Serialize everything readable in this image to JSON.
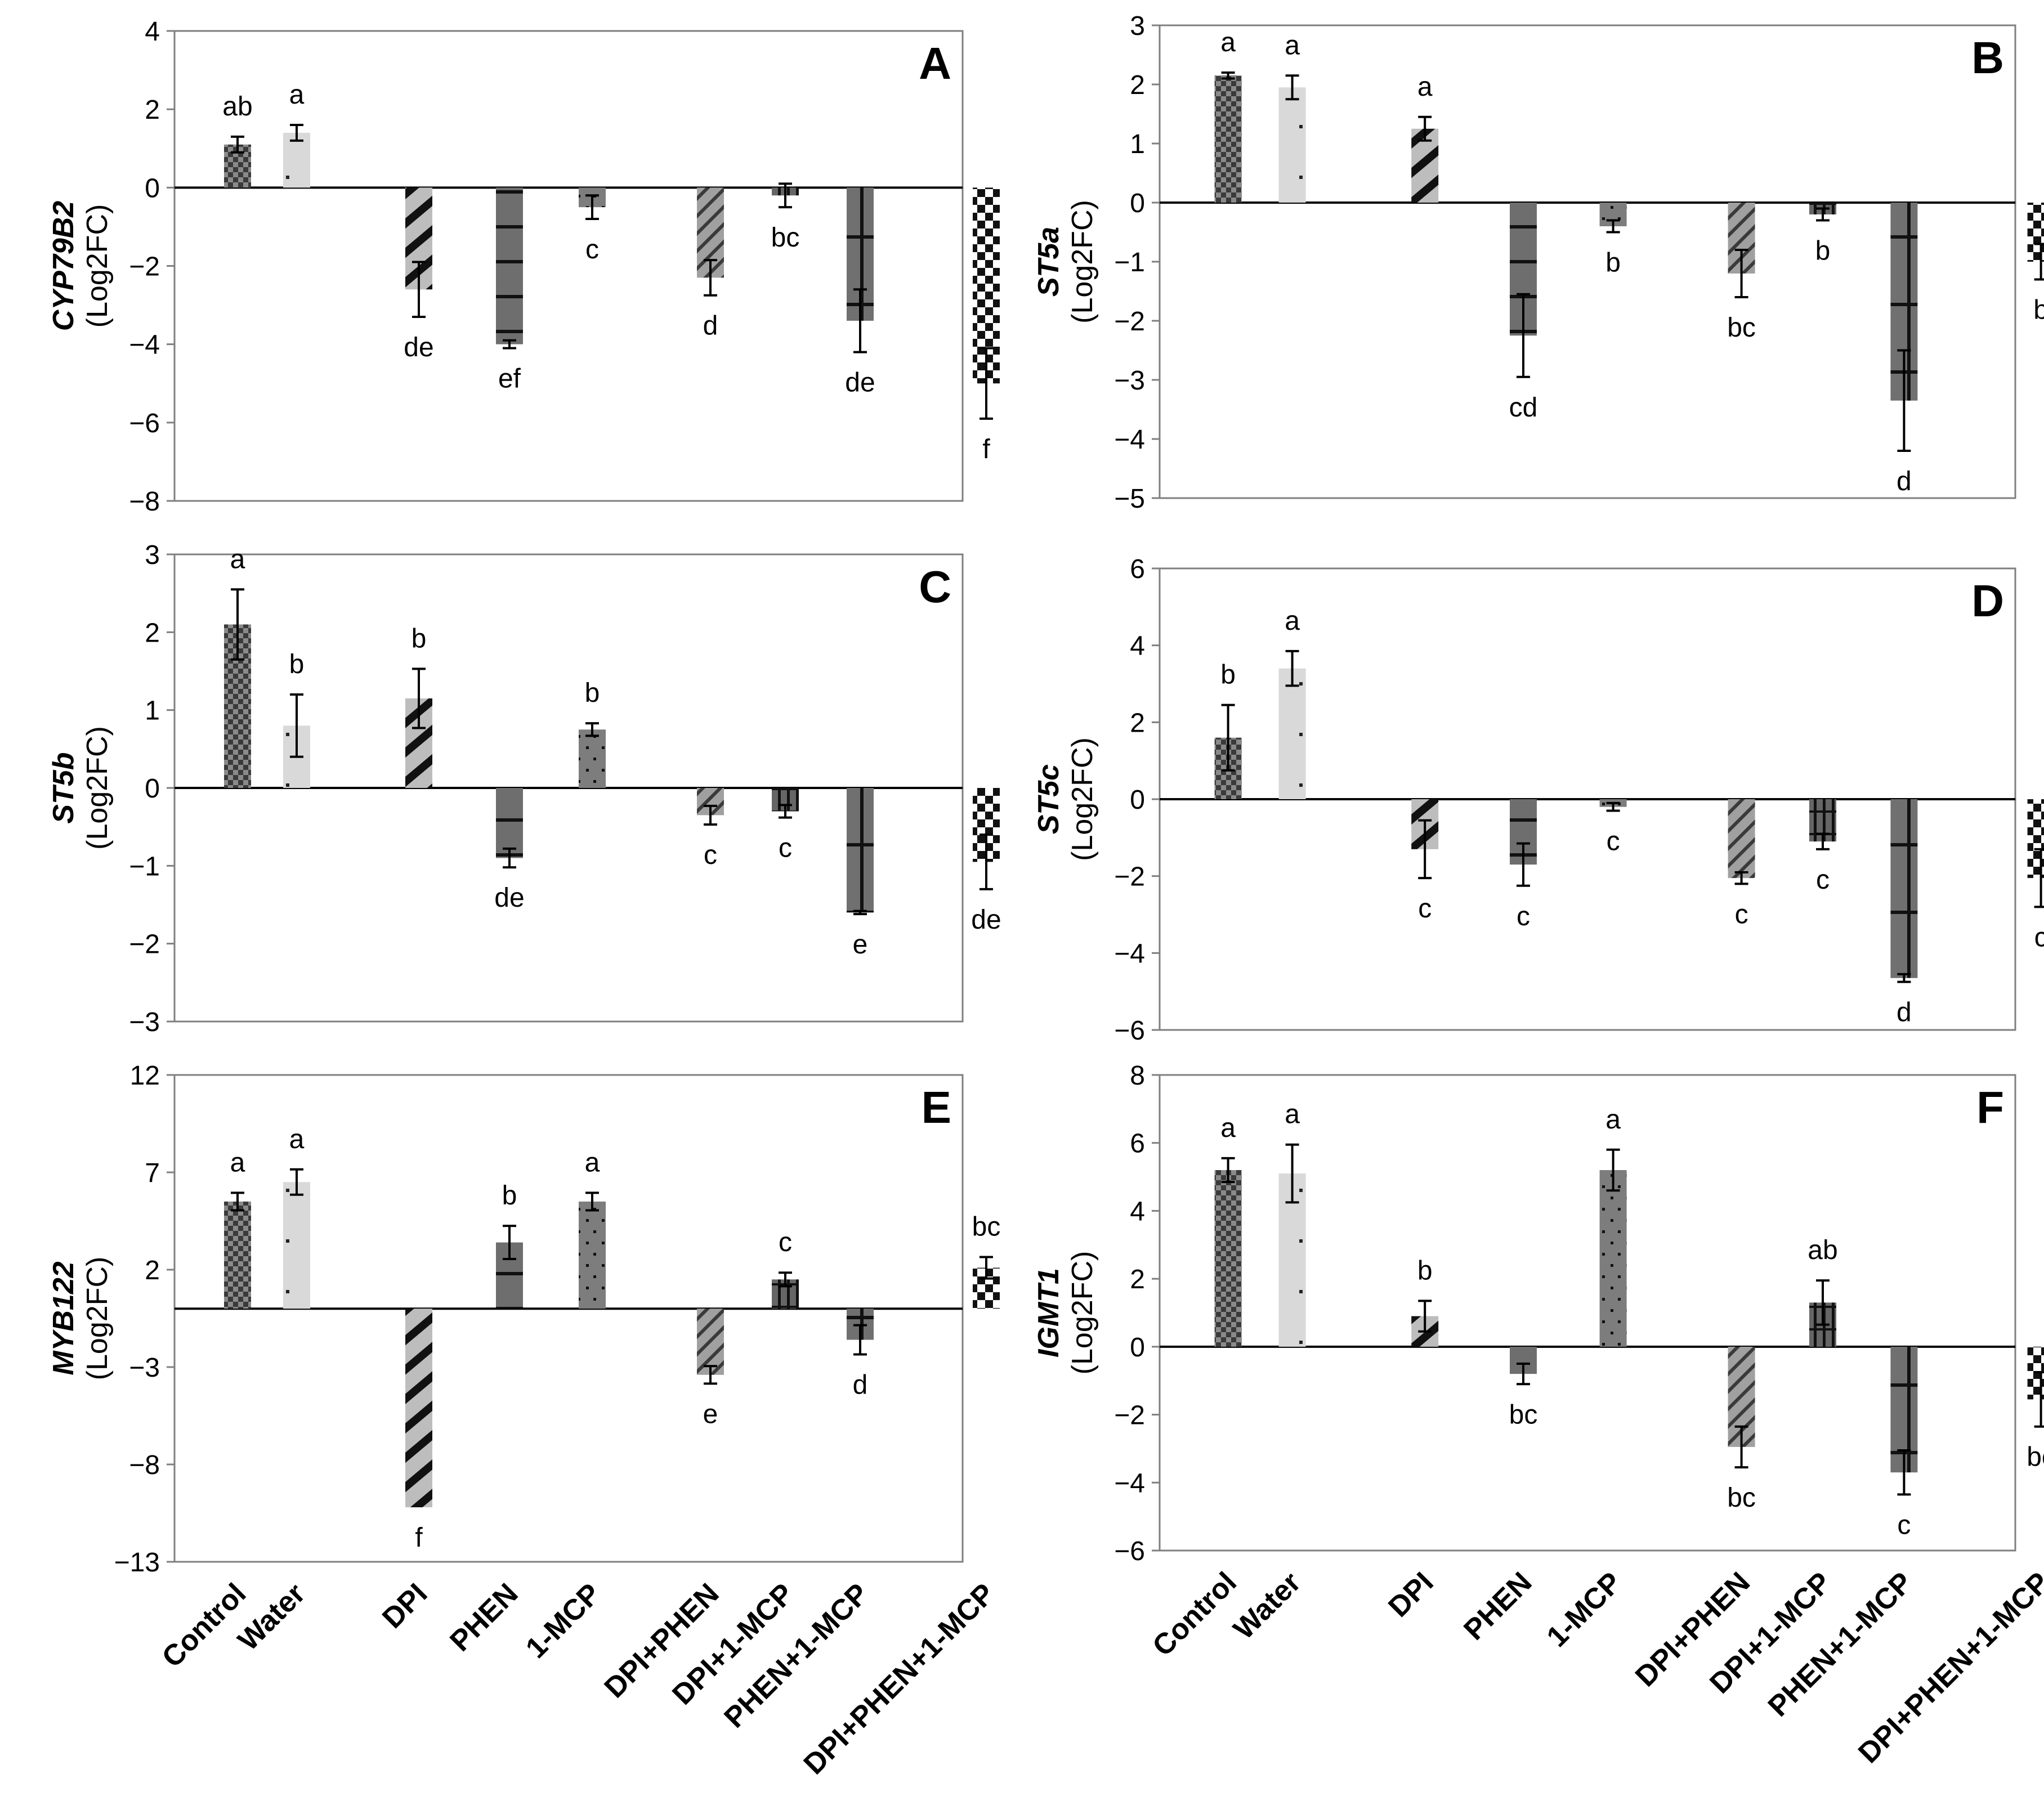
{
  "categories": [
    "Control",
    "Water",
    "DPI",
    "PHEN",
    "1-MCP",
    "DPI+PHEN",
    "DPI+1-MCP",
    "PHEN+1-MCP",
    "DPI+PHEN+1-MCP"
  ],
  "chart_data": [
    {
      "type": "bar",
      "panel": "A",
      "gene": "CYP79B2",
      "ylabel": "(Log2FC)",
      "ylim": [
        -8,
        4
      ],
      "yticks": [
        4,
        2,
        0,
        -2,
        -4,
        -6,
        -8
      ],
      "values": [
        1.1,
        1.4,
        -2.6,
        -4.0,
        -0.5,
        -2.3,
        -0.2,
        -3.4,
        -5.0
      ],
      "errors": [
        0.2,
        0.2,
        0.7,
        0.1,
        0.3,
        0.45,
        0.3,
        0.8,
        0.9
      ],
      "letters": [
        "ab",
        "a",
        "de",
        "ef",
        "c",
        "d",
        "bc",
        "de",
        "f"
      ]
    },
    {
      "type": "bar",
      "panel": "B",
      "gene": "ST5a",
      "ylabel": "(Log2FC)",
      "ylim": [
        -5,
        3
      ],
      "yticks": [
        3,
        2,
        1,
        0,
        -1,
        -2,
        -3,
        -4,
        -5
      ],
      "values": [
        2.15,
        1.95,
        1.25,
        -2.25,
        -0.4,
        -1.2,
        -0.2,
        -3.35,
        -1.0
      ],
      "errors": [
        0.05,
        0.2,
        0.2,
        0.7,
        0.1,
        0.4,
        0.1,
        0.85,
        0.3
      ],
      "letters": [
        "a",
        "a",
        "a",
        "cd",
        "b",
        "bc",
        "b",
        "d",
        "b"
      ]
    },
    {
      "type": "bar",
      "panel": "C",
      "gene": "ST5b",
      "ylabel": "(Log2FC)",
      "ylim": [
        -3,
        3
      ],
      "yticks": [
        3,
        2,
        1,
        0,
        -1,
        -2,
        -3
      ],
      "values": [
        2.1,
        0.8,
        1.15,
        -0.9,
        0.75,
        -0.35,
        -0.3,
        -1.6,
        -0.95
      ],
      "errors": [
        0.45,
        0.4,
        0.38,
        0.12,
        0.08,
        0.12,
        0.08,
        0.02,
        0.35
      ],
      "letters": [
        "a",
        "b",
        "b",
        "de",
        "b",
        "c",
        "c",
        "e",
        "de"
      ]
    },
    {
      "type": "bar",
      "panel": "D",
      "gene": "ST5c",
      "ylabel": "(Log2FC)",
      "ylim": [
        -6,
        6
      ],
      "yticks": [
        6,
        4,
        2,
        0,
        -2,
        -4,
        -6
      ],
      "values": [
        1.6,
        3.4,
        -1.3,
        -1.7,
        -0.2,
        -2.05,
        -1.1,
        -4.65,
        -2.05
      ],
      "errors": [
        0.85,
        0.45,
        0.75,
        0.55,
        0.1,
        0.15,
        0.2,
        0.1,
        0.75
      ],
      "letters": [
        "b",
        "a",
        "c",
        "c",
        "c",
        "c",
        "c",
        "d",
        "c"
      ]
    },
    {
      "type": "bar",
      "panel": "E",
      "gene": "MYB122",
      "ylabel": "(Log2FC)",
      "ylim": [
        -13,
        12
      ],
      "yticks": [
        12,
        7,
        2,
        -3,
        -8,
        -13
      ],
      "values": [
        5.5,
        6.5,
        -10.2,
        3.4,
        5.5,
        -3.4,
        1.5,
        -1.6,
        2.1
      ],
      "errors": [
        0.45,
        0.65,
        0.0,
        0.85,
        0.45,
        0.45,
        0.35,
        0.75,
        0.55
      ],
      "letters": [
        "a",
        "a",
        "f",
        "b",
        "a",
        "e",
        "c",
        "d",
        "bc"
      ]
    },
    {
      "type": "bar",
      "panel": "F",
      "gene": "IGMT1",
      "ylabel": "(Log2FC)",
      "ylim": [
        -6,
        8
      ],
      "yticks": [
        8,
        6,
        4,
        2,
        0,
        -2,
        -4,
        -6
      ],
      "values": [
        5.2,
        5.1,
        0.9,
        -0.8,
        5.2,
        -2.95,
        1.3,
        -3.7,
        -1.55
      ],
      "errors": [
        0.35,
        0.85,
        0.45,
        0.3,
        0.6,
        0.6,
        0.65,
        0.65,
        0.8
      ],
      "letters": [
        "a",
        "a",
        "b",
        "bc",
        "a",
        "bc",
        "ab",
        "c",
        "bc"
      ]
    }
  ]
}
